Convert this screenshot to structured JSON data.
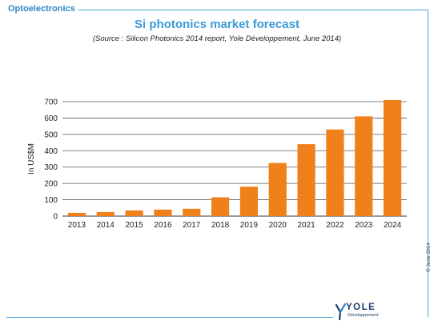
{
  "header": {
    "section_tag": "Optoelectronics"
  },
  "footer": {
    "copyright": "© June 2014",
    "logo_name": "YOLE",
    "logo_sub": "Développement"
  },
  "colors": {
    "bar": "#f08019",
    "title": "#3c9ad6",
    "frame": "#4fa3d8",
    "grid": "#555555"
  },
  "chart_data": {
    "type": "bar",
    "title": "Si photonics market forecast",
    "subtitle": "(Source : Silicon Photonics 2014 report, Yole Développement, June 2014)",
    "xlabel": "",
    "ylabel": "In US$M",
    "categories": [
      "2013",
      "2014",
      "2015",
      "2016",
      "2017",
      "2018",
      "2019",
      "2020",
      "2021",
      "2022",
      "2023",
      "2024"
    ],
    "values": [
      20,
      25,
      35,
      40,
      45,
      115,
      180,
      325,
      440,
      530,
      610,
      710
    ],
    "ylim": [
      0,
      700
    ],
    "yticks": [
      0,
      100,
      200,
      300,
      400,
      500,
      600,
      700
    ],
    "grid": true,
    "legend": "none"
  }
}
